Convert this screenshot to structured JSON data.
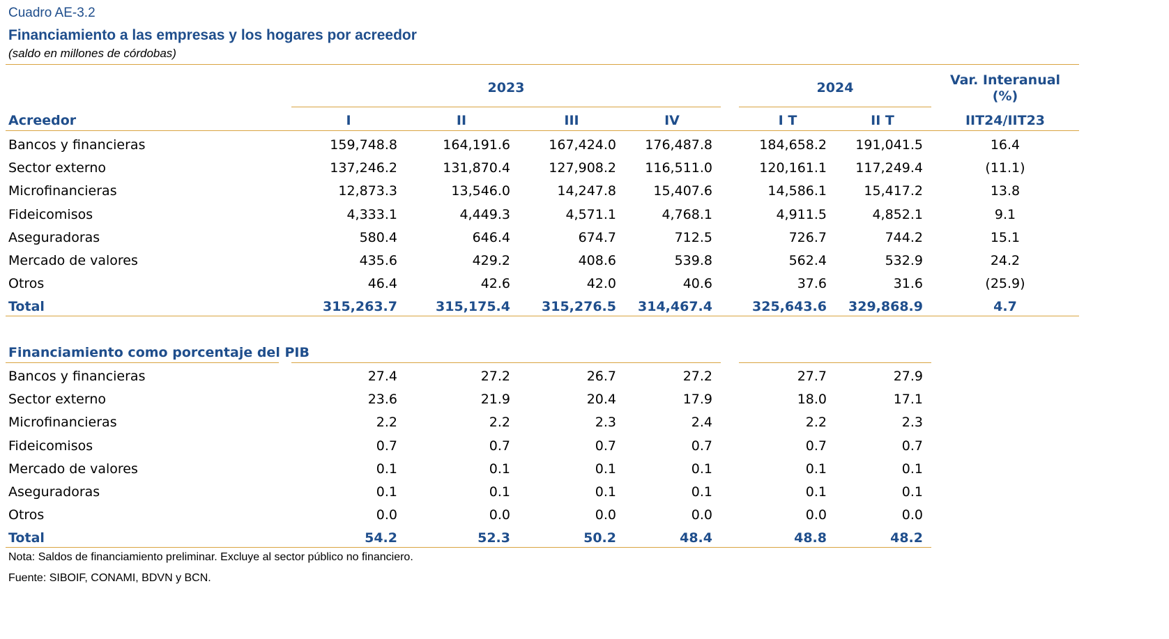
{
  "doc": {
    "cuadro": "Cuadro AE-3.2",
    "title": "Financiamiento a las empresas y los hogares por acreedor",
    "subtitle": "(saldo en millones de córdobas)"
  },
  "header": {
    "year_2023": "2023",
    "year_2024": "2024",
    "var_line1": "Var. Interanual",
    "var_line2": "(%)",
    "col_label": "Acreedor",
    "cols": [
      "I",
      "II",
      "III",
      "IV",
      "I T",
      "II T",
      "IIT24/IIT23"
    ]
  },
  "table1": {
    "rows": [
      {
        "label": "Bancos y financieras",
        "values": [
          "159,748.8",
          "164,191.6",
          "167,424.0",
          "176,487.8",
          "184,658.2",
          "191,041.5",
          "16.4"
        ]
      },
      {
        "label": "Sector externo",
        "values": [
          "137,246.2",
          "131,870.4",
          "127,908.2",
          "116,511.0",
          "120,161.1",
          "117,249.4",
          "(11.1)"
        ]
      },
      {
        "label": "Microfinancieras",
        "values": [
          "12,873.3",
          "13,546.0",
          "14,247.8",
          "15,407.6",
          "14,586.1",
          "15,417.2",
          "13.8"
        ]
      },
      {
        "label": "Fideicomisos",
        "values": [
          "4,333.1",
          "4,449.3",
          "4,571.1",
          "4,768.1",
          "4,911.5",
          "4,852.1",
          "9.1"
        ]
      },
      {
        "label": "Aseguradoras",
        "values": [
          "580.4",
          "646.4",
          "674.7",
          "712.5",
          "726.7",
          "744.2",
          "15.1"
        ]
      },
      {
        "label": "Mercado de valores",
        "values": [
          "435.6",
          "429.2",
          "408.6",
          "539.8",
          "562.4",
          "532.9",
          "24.2"
        ]
      },
      {
        "label": "Otros",
        "values": [
          "46.4",
          "42.6",
          "42.0",
          "40.6",
          "37.6",
          "31.6",
          "(25.9)"
        ]
      }
    ],
    "total": {
      "label": "Total",
      "values": [
        "315,263.7",
        "315,175.4",
        "315,276.5",
        "314,467.4",
        "325,643.6",
        "329,868.9",
        "4.7"
      ]
    }
  },
  "table2": {
    "heading": "Financiamiento como porcentaje del PIB",
    "rows": [
      {
        "label": "Bancos y financieras",
        "values": [
          "27.4",
          "27.2",
          "26.7",
          "27.2",
          "27.7",
          "27.9"
        ]
      },
      {
        "label": "Sector externo",
        "values": [
          "23.6",
          "21.9",
          "20.4",
          "17.9",
          "18.0",
          "17.1"
        ]
      },
      {
        "label": "Microfinancieras",
        "values": [
          "2.2",
          "2.2",
          "2.3",
          "2.4",
          "2.2",
          "2.3"
        ]
      },
      {
        "label": "Fideicomisos",
        "values": [
          "0.7",
          "0.7",
          "0.7",
          "0.7",
          "0.7",
          "0.7"
        ]
      },
      {
        "label": "Mercado de valores",
        "values": [
          "0.1",
          "0.1",
          "0.1",
          "0.1",
          "0.1",
          "0.1"
        ]
      },
      {
        "label": "Aseguradoras",
        "values": [
          "0.1",
          "0.1",
          "0.1",
          "0.1",
          "0.1",
          "0.1"
        ]
      },
      {
        "label": "Otros",
        "values": [
          "0.0",
          "0.0",
          "0.0",
          "0.0",
          "0.0",
          "0.0"
        ]
      }
    ],
    "total": {
      "label": "Total",
      "values": [
        "54.2",
        "52.3",
        "50.2",
        "48.4",
        "48.8",
        "48.2"
      ]
    }
  },
  "notes": {
    "nota": "Nota: Saldos de financiamiento preliminar. Excluye al sector público no financiero.",
    "fuente": "Fuente: SIBOIF, CONAMI, BDVN y BCN."
  },
  "colors": {
    "accent_blue": "#1f4e8c",
    "rule_gold": "#d9a441"
  }
}
